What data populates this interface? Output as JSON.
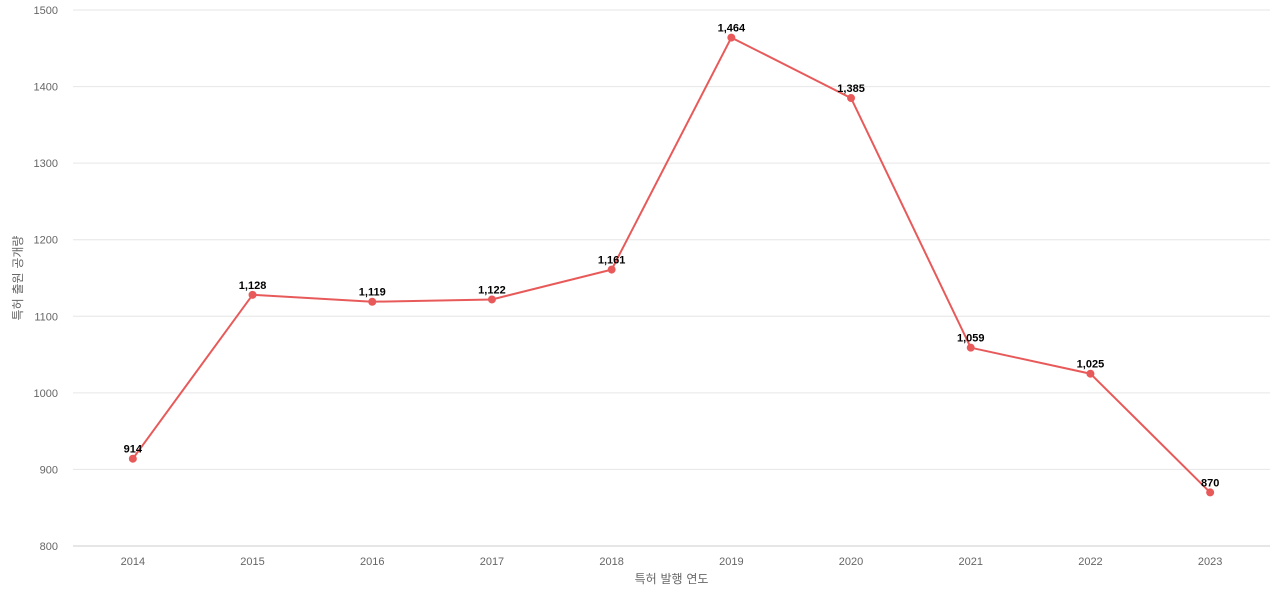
{
  "chart_data": {
    "type": "line",
    "x": [
      "2014",
      "2015",
      "2016",
      "2017",
      "2018",
      "2019",
      "2020",
      "2021",
      "2022",
      "2023"
    ],
    "series": [
      {
        "values": [
          914,
          1128,
          1119,
          1122,
          1161,
          1464,
          1385,
          1059,
          1025,
          870
        ]
      }
    ],
    "data_labels": [
      "914",
      "1,128",
      "1,119",
      "1,122",
      "1,161",
      "1,464",
      "1,385",
      "1,059",
      "1,025",
      "870"
    ],
    "xlabel": "특허 발행 연도",
    "ylabel": "특허 출원 공개량",
    "ylim": [
      800,
      1500
    ],
    "yticks": [
      "800",
      "900",
      "1000",
      "1100",
      "1200",
      "1300",
      "1400",
      "1500"
    ],
    "grid": "horizontal",
    "legend": "none",
    "colors": {
      "line": "#e85a5a",
      "grid": "#e6e6e6",
      "axis_text": "#666666",
      "label_text": "#000000"
    }
  }
}
